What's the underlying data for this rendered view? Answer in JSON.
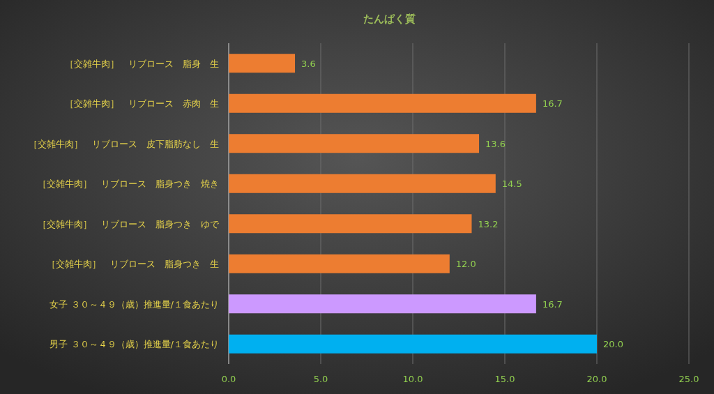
{
  "chart_data": {
    "type": "bar",
    "orientation": "horizontal",
    "title": "たんぱく質",
    "categories": [
      "［交雑牛肉］　リブロース　脂身　生",
      "［交雑牛肉］　リブロース　赤肉　生",
      "［交雑牛肉］　リブロース　皮下脂肪なし　生",
      "［交雑牛肉］　リブロース　脂身つき　焼き",
      "［交雑牛肉］　リブロース　脂身つき　ゆで",
      "［交雑牛肉］　リブロース　脂身つき　生",
      "女子 ３０～４９（歳）推進量/１食あたり",
      "男子 ３０～４９（歳）推進量/１食あたり"
    ],
    "values": [
      3.6,
      16.7,
      13.6,
      14.5,
      13.2,
      12.0,
      16.7,
      20.0
    ],
    "value_labels": [
      "3.6",
      "16.7",
      "13.6",
      "14.5",
      "13.2",
      "12.0",
      "16.7",
      "20.0"
    ],
    "colors": [
      "#ed7d31",
      "#ed7d31",
      "#ed7d31",
      "#ed7d31",
      "#ed7d31",
      "#ed7d31",
      "#cc99ff",
      "#00b0f0"
    ],
    "xlim": [
      0,
      25
    ],
    "xticks": [
      {
        "value": 0,
        "label": "0.0"
      },
      {
        "value": 5,
        "label": "5.0"
      },
      {
        "value": 10,
        "label": "10.0"
      },
      {
        "value": 15,
        "label": "15.0"
      },
      {
        "value": 20,
        "label": "20.0"
      },
      {
        "value": 25,
        "label": "25.0"
      }
    ],
    "grid": "x"
  }
}
